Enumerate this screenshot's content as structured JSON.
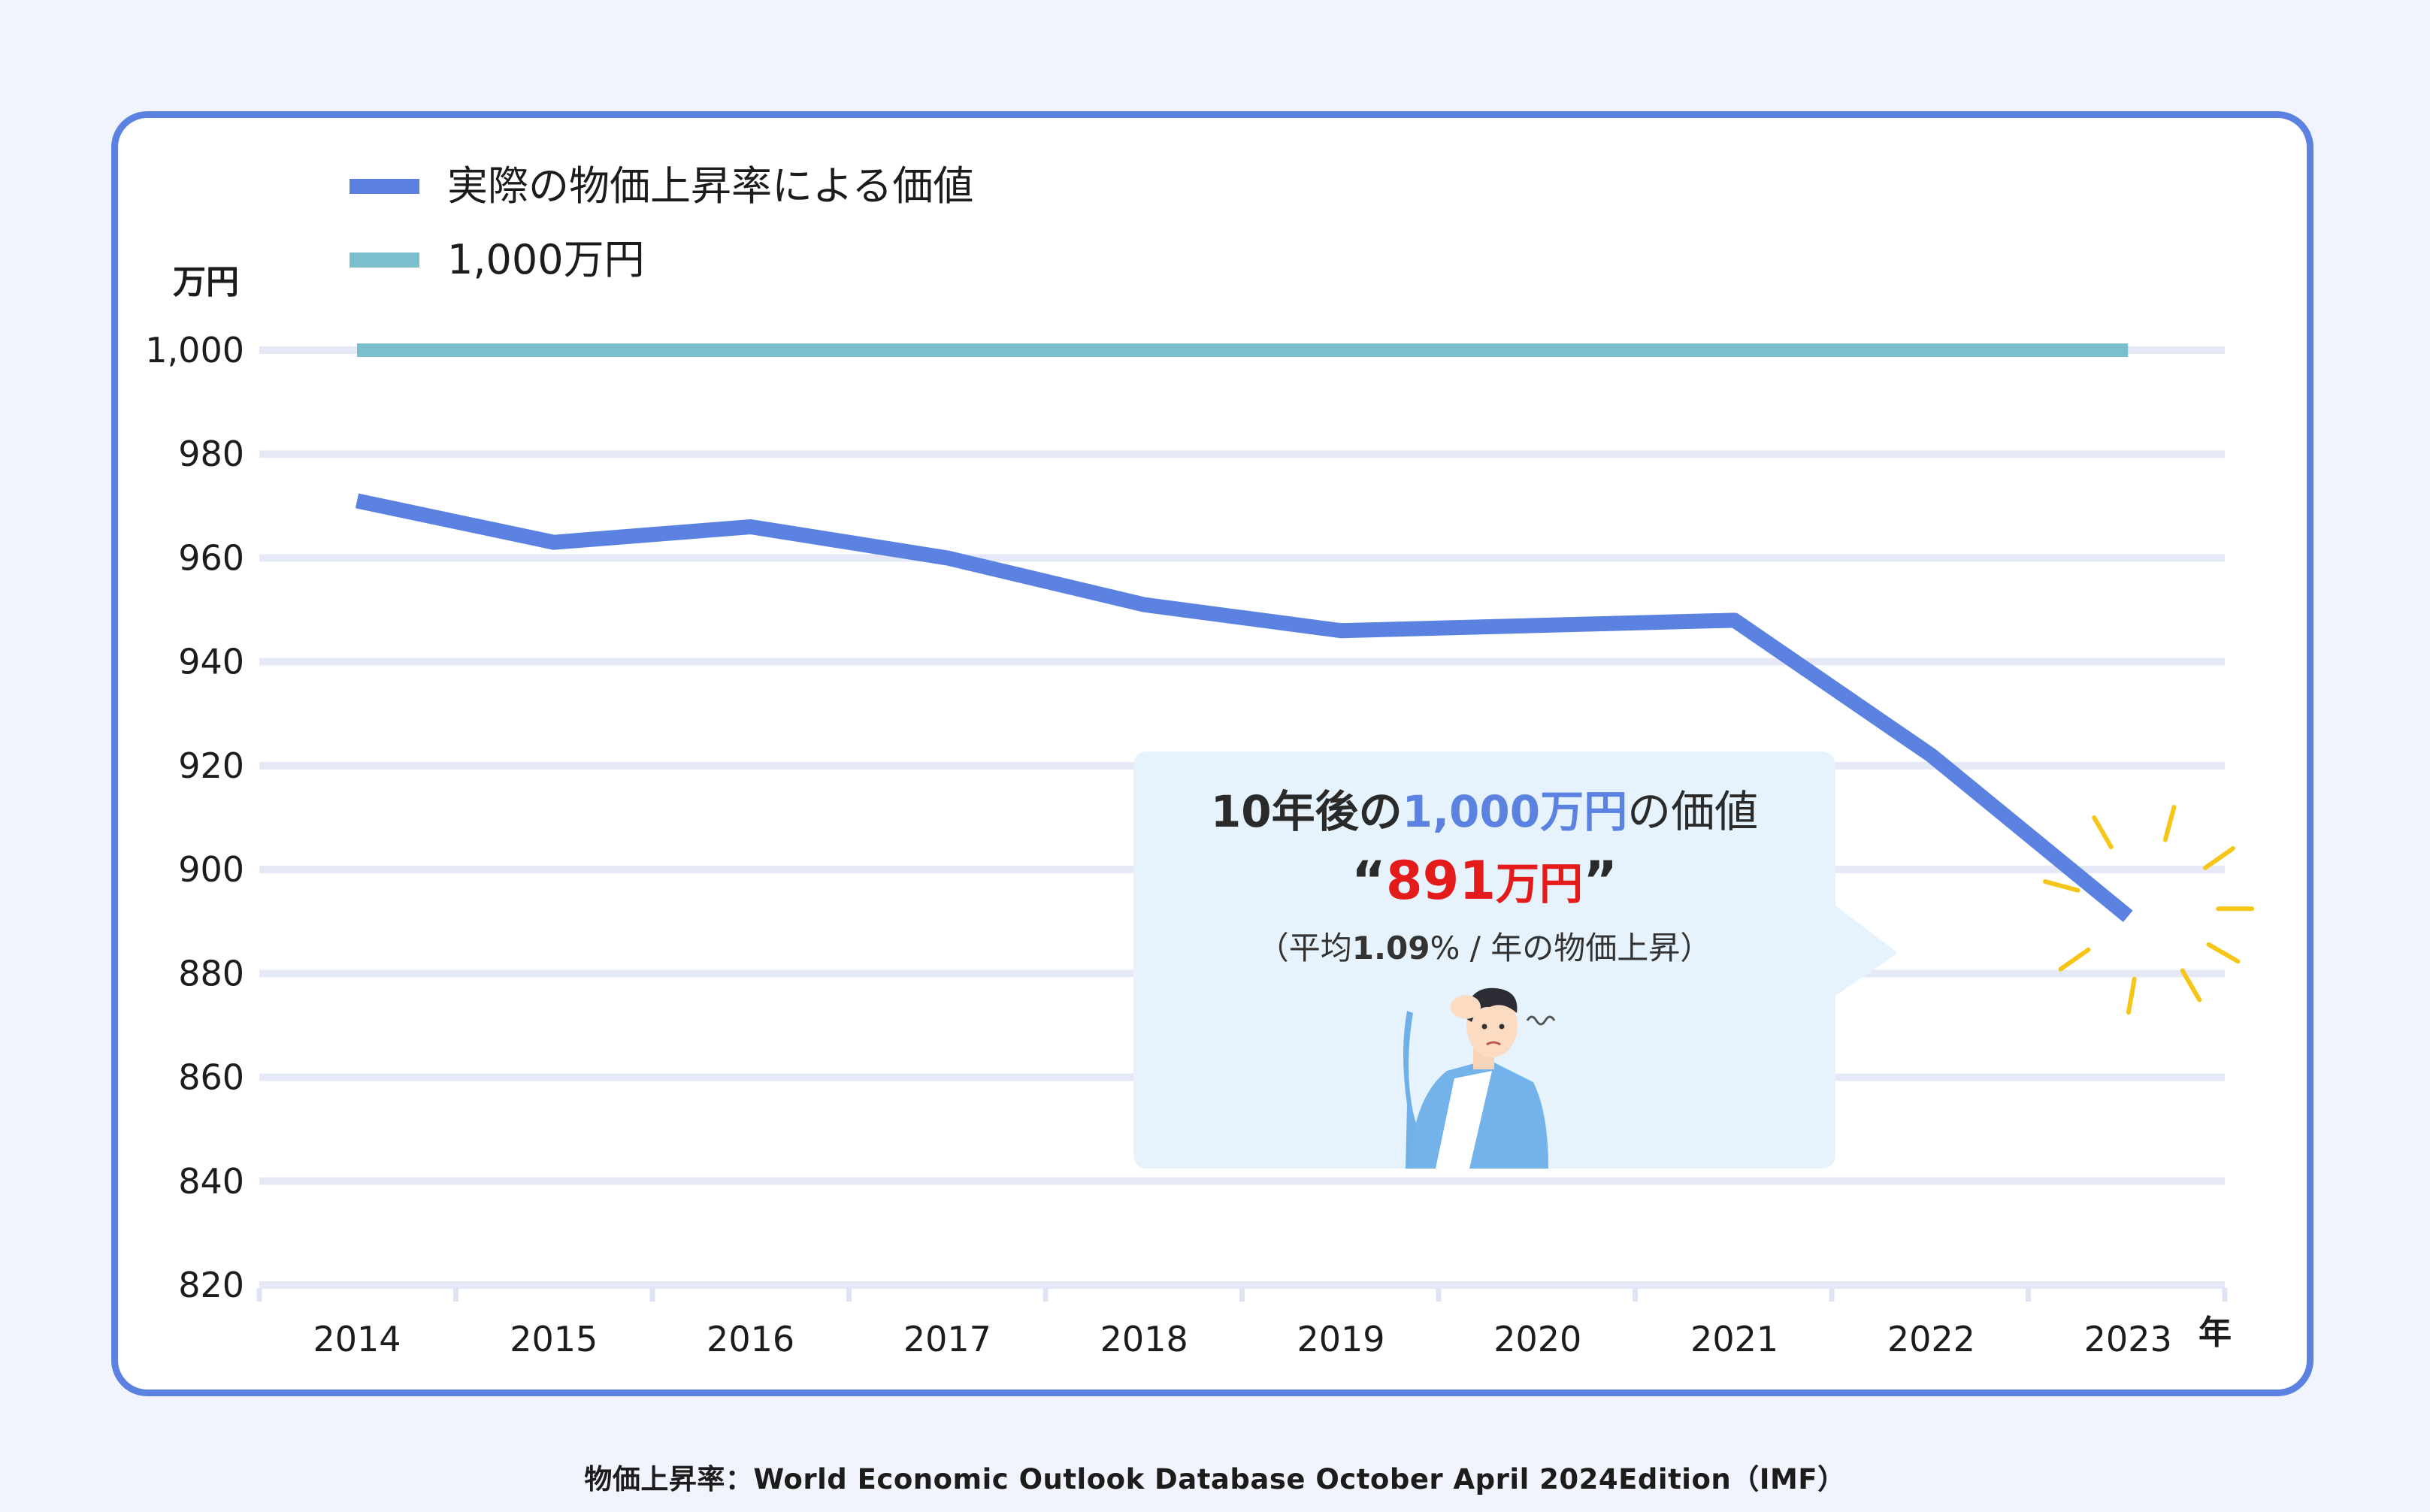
{
  "chart_data": {
    "type": "line",
    "ylabel": "万円",
    "xlabel": "年",
    "ylim": [
      820,
      1000
    ],
    "yticks": [
      1000,
      980,
      960,
      940,
      920,
      900,
      880,
      860,
      840,
      820
    ],
    "ytick_labels": [
      "1,000",
      "980",
      "960",
      "940",
      "920",
      "900",
      "880",
      "860",
      "840",
      "820"
    ],
    "categories": [
      "2014",
      "2015",
      "2016",
      "2017",
      "2018",
      "2019",
      "2020",
      "2021",
      "2022",
      "2023"
    ],
    "grid": true,
    "legend_position": "top-left",
    "series": [
      {
        "name": "実際の物価上昇率による価値",
        "color": "#5b82e0",
        "values": [
          971,
          963,
          966,
          960,
          951,
          946,
          947,
          948,
          922,
          891
        ]
      },
      {
        "name": "1,000万円",
        "color": "#7bbfcc",
        "values": [
          1000,
          1000,
          1000,
          1000,
          1000,
          1000,
          1000,
          1000,
          1000,
          1000
        ]
      }
    ],
    "annotation": {
      "headline_pre": "10年後の",
      "headline_amount": "1,000万円",
      "headline_post": "の価値",
      "quote_open": "“",
      "value": "891",
      "value_unit": "万円",
      "quote_close": "”",
      "detail_pre": "（平均",
      "detail_rate": "1.09",
      "detail_post": "% / 年の物価上昇）",
      "colors": {
        "amount": "#5b82e0",
        "value": "#e31b1b",
        "box": "#e6f3fc",
        "burst": "#f5c518"
      }
    }
  },
  "source": "物価上昇率：World Economic Outlook Database October April 2024Edition（IMF）"
}
